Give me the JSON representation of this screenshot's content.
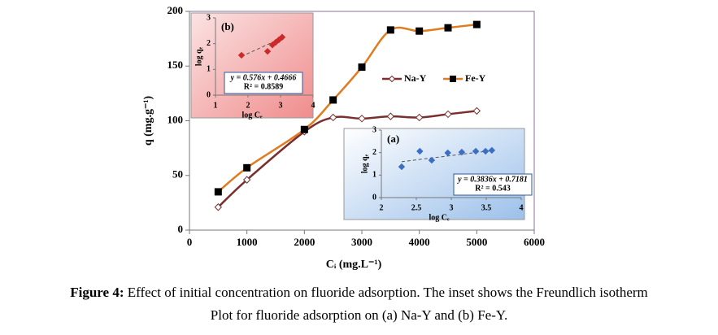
{
  "chart_data": [
    {
      "type": "line",
      "xlabel": "Cᵢ (mg.L⁻¹)",
      "ylabel": "q (mg.g⁻¹)",
      "xlim": [
        0,
        6000
      ],
      "xticks": [
        0,
        1000,
        2000,
        3000,
        4000,
        5000,
        6000
      ],
      "ylim": [
        0,
        200
      ],
      "yticks": [
        0,
        50,
        100,
        150,
        200
      ],
      "legend": "center right",
      "x": [
        500,
        1000,
        2000,
        2500,
        3000,
        3500,
        4000,
        4500,
        5000
      ],
      "series": [
        {
          "name": "Na-Y",
          "color": "#7a2e2e",
          "marker": "diamond",
          "values": [
            21,
            46,
            90,
            103,
            102,
            104,
            103,
            106,
            109
          ]
        },
        {
          "name": "Fe-Y",
          "color": "#e07b20",
          "marker": "square",
          "values": [
            35,
            57,
            92,
            119,
            149,
            183,
            182,
            185,
            188
          ]
        }
      ]
    },
    {
      "type": "scatter",
      "label": "(b)",
      "xlabel": "log Cₑ",
      "ylabel": "log qₑ",
      "xlim": [
        1,
        4
      ],
      "xticks": [
        1,
        2,
        3,
        4
      ],
      "ylim": [
        0,
        3
      ],
      "yticks": [
        0,
        1,
        2,
        3
      ],
      "color": "#cc2a2a",
      "x": [
        1.8,
        2.6,
        2.75,
        2.85,
        2.95,
        3.05
      ],
      "values": [
        1.55,
        1.7,
        1.95,
        2.05,
        2.15,
        2.25
      ],
      "trendline": {
        "slope": 0.576,
        "intercept": 0.4666,
        "label": "y = 0.576x + 0.4666",
        "r2_label": "R² = 0.8589"
      }
    },
    {
      "type": "scatter",
      "label": "(a)",
      "xlabel": "log Cₑ",
      "ylabel": "log qₑ",
      "xlim": [
        2,
        4
      ],
      "xticks": [
        2,
        2.5,
        3,
        3.5,
        4
      ],
      "ylim": [
        0,
        3
      ],
      "yticks": [
        0,
        1,
        2,
        3
      ],
      "color": "#3a6fc4",
      "x": [
        2.29,
        2.55,
        2.72,
        2.95,
        3.15,
        3.35,
        3.49,
        3.58
      ],
      "values": [
        1.37,
        2.06,
        1.66,
        1.99,
        2.02,
        2.06,
        2.06,
        2.1
      ],
      "trendline": {
        "slope": 0.3836,
        "intercept": 0.7181,
        "label": "y = 0.3836x + 0.7181",
        "r2_label": "R² = 0.543"
      }
    }
  ],
  "caption": {
    "label": "Figure 4:",
    "lines": [
      "Effect of initial concentration on fluoride adsorption. The inset shows the Freundlich isotherm",
      "Plot for fluoride adsorption on (a) Na-Y and (b) Fe-Y."
    ]
  }
}
